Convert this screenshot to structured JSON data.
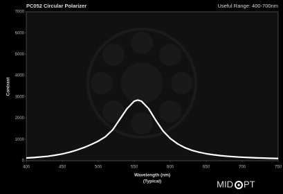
{
  "chart_data": {
    "type": "line",
    "title": "PC052 Circular Polarizer",
    "subtitle": "Useful Range: 400-700nm",
    "x_label": "Wavelength (nm)",
    "x_note": "(Typical)",
    "y_label": "Contrast",
    "x": [
      400,
      410,
      420,
      430,
      440,
      450,
      460,
      470,
      480,
      490,
      500,
      510,
      520,
      530,
      540,
      550,
      555,
      560,
      570,
      580,
      590,
      600,
      610,
      620,
      630,
      640,
      650,
      660,
      670,
      680,
      690,
      700,
      710,
      720,
      730,
      740,
      750
    ],
    "series": [
      {
        "color": "#ffffff",
        "values": [
          130,
          150,
          180,
          210,
          260,
          320,
          400,
          500,
          620,
          760,
          920,
          1130,
          1450,
          1950,
          2450,
          2800,
          2850,
          2800,
          2450,
          1900,
          1400,
          1050,
          800,
          620,
          490,
          400,
          330,
          280,
          240,
          210,
          185,
          165,
          150,
          135,
          125,
          115,
          105
        ]
      }
    ],
    "xlim": [
      400,
      750
    ],
    "xticks": [
      400,
      450,
      500,
      550,
      600,
      650,
      700,
      750
    ],
    "ylim": [
      0,
      7000
    ],
    "yticks": [
      0,
      1000,
      2000,
      3000,
      4000,
      5000,
      6000,
      7000
    ],
    "logo": {
      "left": "MID",
      "right": "PT"
    }
  }
}
